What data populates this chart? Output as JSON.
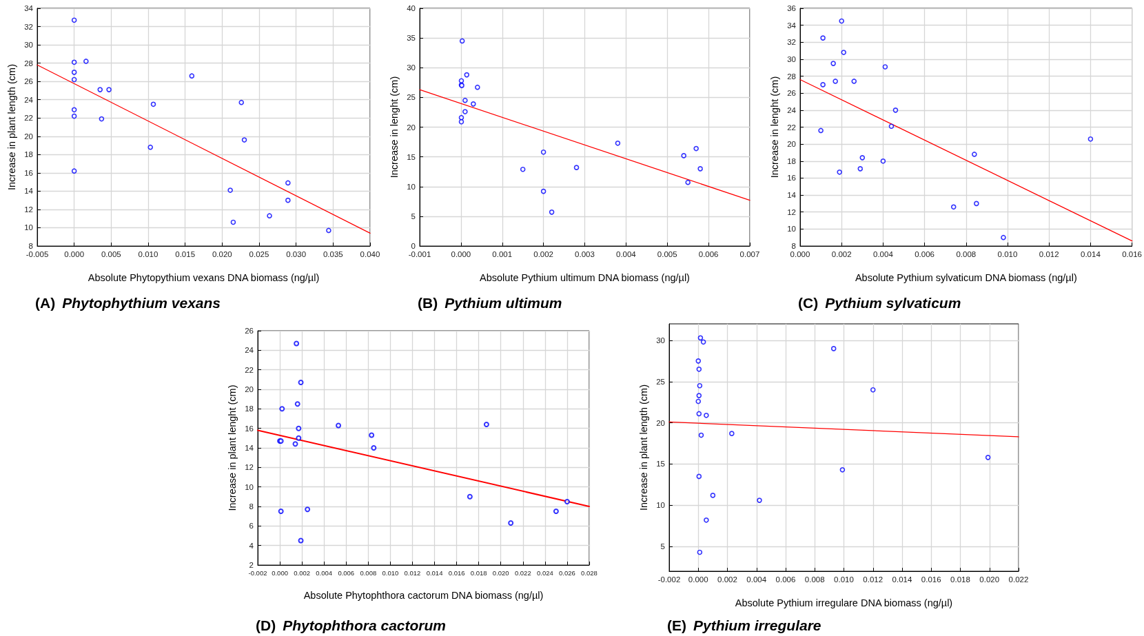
{
  "chart_data": [
    {
      "type": "scatter",
      "title": "(A) Phytophythium vexans",
      "xlabel": "Absolute Phytopythium vexans DNA biomass (ng/µl)",
      "ylabel": "Increase in plant length (cm)",
      "xlim": [
        -0.005,
        0.04
      ],
      "xticks": [
        {
          "value": -0.005,
          "label": "-0.005"
        },
        {
          "value": 0,
          "label": "0.000"
        },
        {
          "value": 0.005,
          "label": "0.005"
        },
        {
          "value": 0.01,
          "label": "0.010"
        },
        {
          "value": 0.015,
          "label": "0.015"
        },
        {
          "value": 0.02,
          "label": "0.020"
        },
        {
          "value": 0.025,
          "label": "0.025"
        },
        {
          "value": 0.03,
          "label": "0.030"
        },
        {
          "value": 0.035,
          "label": "0.035"
        },
        {
          "value": 0.04,
          "label": "0.040"
        }
      ],
      "ylim": [
        8,
        34
      ],
      "yticks": [
        8,
        10,
        12,
        14,
        16,
        18,
        20,
        22,
        24,
        26,
        28,
        30,
        32,
        34
      ],
      "grid": true,
      "marker": "circle",
      "series": [
        {
          "type": "scatter",
          "color": "#0000ff",
          "x": [
            0,
            0,
            0.0016,
            0,
            0,
            0.0035,
            0.0047,
            0.0159,
            0.0107,
            0.0226,
            0,
            0,
            0.0037,
            0.023,
            0.0103,
            0,
            0.0289,
            0.0211,
            0.0289,
            0.0264,
            0.0215,
            0.0344
          ],
          "values": [
            32.7,
            28.1,
            28.2,
            27.0,
            26.2,
            25.1,
            25.1,
            26.6,
            23.5,
            23.7,
            22.9,
            22.2,
            21.9,
            19.6,
            18.8,
            16.2,
            14.9,
            14.1,
            13.0,
            11.3,
            10.6,
            9.7
          ]
        },
        {
          "type": "line",
          "color": "#ff0000",
          "marker": "none",
          "line_style": "solid",
          "x": [
            -0.005,
            0.04
          ],
          "values": [
            27.8,
            9.4
          ]
        }
      ]
    },
    {
      "type": "scatter",
      "title": "(B) Pythium ultimum",
      "xlabel": "Absolute Pythium ultimum DNA biomass (ng/µl)",
      "ylabel": "Increase in lenght (cm)",
      "xlim": [
        -0.001,
        0.007
      ],
      "xticks": [
        {
          "value": -0.001,
          "label": "-0.001"
        },
        {
          "value": 0,
          "label": "0.000"
        },
        {
          "value": 0.001,
          "label": "0.001"
        },
        {
          "value": 0.002,
          "label": "0.002"
        },
        {
          "value": 0.003,
          "label": "0.003"
        },
        {
          "value": 0.004,
          "label": "0.004"
        },
        {
          "value": 0.005,
          "label": "0.005"
        },
        {
          "value": 0.006,
          "label": "0.006"
        },
        {
          "value": 0.007,
          "label": "0.007"
        }
      ],
      "ylim": [
        0,
        40
      ],
      "yticks": [
        0,
        5,
        10,
        15,
        20,
        25,
        30,
        35,
        40
      ],
      "grid": true,
      "marker": "circle",
      "series": [
        {
          "type": "scatter",
          "color": "#0000ff",
          "x": [
            3e-05,
            0.00014,
            1e-05,
            1e-05,
            2e-05,
            0.0004,
            0.0001,
            0.0003,
            0.0001,
            1e-05,
            1e-05,
            0.0038,
            0.0057,
            0.002,
            0.0054,
            0.0028,
            0.0058,
            0.0015,
            0.0055,
            0.002,
            0.0022
          ],
          "values": [
            34.5,
            28.8,
            27.8,
            27.1,
            27.0,
            26.7,
            24.5,
            23.9,
            22.6,
            21.6,
            20.9,
            17.3,
            16.4,
            15.8,
            15.2,
            13.2,
            13.0,
            12.9,
            10.7,
            9.2,
            5.7
          ]
        },
        {
          "type": "line",
          "color": "#ff0000",
          "marker": "none",
          "line_style": "solid",
          "x": [
            -0.001,
            0.007
          ],
          "values": [
            26.3,
            7.7
          ]
        }
      ]
    },
    {
      "type": "scatter",
      "title": "(C) Pythium sylvaticum",
      "xlabel": "Absolute Pythium sylvaticum DNA biomass (ng/µl)",
      "ylabel": "Increase in lenght (cm)",
      "xlim": [
        0,
        0.016
      ],
      "xticks": [
        {
          "value": 0,
          "label": "0.000"
        },
        {
          "value": 0.002,
          "label": "0.002"
        },
        {
          "value": 0.004,
          "label": "0.004"
        },
        {
          "value": 0.006,
          "label": "0.006"
        },
        {
          "value": 0.008,
          "label": "0.008"
        },
        {
          "value": 0.01,
          "label": "0.010"
        },
        {
          "value": 0.012,
          "label": "0.012"
        },
        {
          "value": 0.014,
          "label": "0.014"
        },
        {
          "value": 0.016,
          "label": "0.016"
        }
      ],
      "ylim": [
        8,
        36
      ],
      "yticks": [
        8,
        10,
        12,
        14,
        16,
        18,
        20,
        22,
        24,
        26,
        28,
        30,
        32,
        34,
        36
      ],
      "grid": true,
      "marker": "circle",
      "series": [
        {
          "type": "scatter",
          "color": "#0000ff",
          "x": [
            0.002,
            0.0011,
            0.0021,
            0.0016,
            0.0041,
            0.0017,
            0.0026,
            0.0011,
            0.0046,
            0.0044,
            0.001,
            0.014,
            0.0084,
            0.003,
            0.004,
            0.0029,
            0.0019,
            0.0085,
            0.0074,
            0.0098
          ],
          "values": [
            34.5,
            32.5,
            30.8,
            29.5,
            29.1,
            27.4,
            27.4,
            27.0,
            24.0,
            22.1,
            21.6,
            20.6,
            18.8,
            18.4,
            18.0,
            17.1,
            16.7,
            13.0,
            12.6,
            9.0
          ]
        },
        {
          "type": "line",
          "color": "#ff0000",
          "marker": "none",
          "line_style": "solid",
          "x": [
            0,
            0.016
          ],
          "values": [
            27.6,
            8.6
          ]
        }
      ]
    },
    {
      "type": "scatter",
      "title": "(D) Phytophthora cactorum",
      "xlabel": "Absolute Phytophthora cactorum DNA biomass (ng/µl)",
      "ylabel": "Increase in plant lenght (cm)",
      "xlim": [
        -0.002,
        0.028
      ],
      "xticks": [
        {
          "value": -0.002,
          "label": "-0.002"
        },
        {
          "value": 0,
          "label": "0.000"
        },
        {
          "value": 0.002,
          "label": "0.002"
        },
        {
          "value": 0.004,
          "label": "0.004"
        },
        {
          "value": 0.006,
          "label": "0.006"
        },
        {
          "value": 0.008,
          "label": "0.008"
        },
        {
          "value": 0.01,
          "label": "0.010"
        },
        {
          "value": 0.012,
          "label": "0.012"
        },
        {
          "value": 0.014,
          "label": "0.014"
        },
        {
          "value": 0.016,
          "label": "0.016"
        },
        {
          "value": 0.018,
          "label": "0.018"
        },
        {
          "value": 0.02,
          "label": "0.020"
        },
        {
          "value": 0.022,
          "label": "0.022"
        },
        {
          "value": 0.024,
          "label": "0.024"
        },
        {
          "value": 0.026,
          "label": "0.026"
        },
        {
          "value": 0.028,
          "label": "0.028"
        }
      ],
      "ylim": [
        2,
        26
      ],
      "yticks": [
        2,
        4,
        6,
        8,
        10,
        12,
        14,
        16,
        18,
        20,
        22,
        24,
        26
      ],
      "grid": true,
      "marker": "circle",
      "series": [
        {
          "type": "scatter",
          "color": "#0000ff",
          "x": [
            0.0015,
            0.0019,
            0.0016,
            0.0002,
            0.0053,
            0.0187,
            0.0017,
            0.0083,
            0.0017,
            0,
            0.0001,
            0.0014,
            0.0085,
            0.0172,
            0.026,
            0.0001,
            0.0025,
            0.025,
            0.0209,
            0.0019
          ],
          "values": [
            24.7,
            20.7,
            18.5,
            18.0,
            16.3,
            16.4,
            16.0,
            15.3,
            15.0,
            14.7,
            14.7,
            14.4,
            14.0,
            9.0,
            8.5,
            7.5,
            7.7,
            7.5,
            6.3,
            4.5
          ]
        },
        {
          "type": "line",
          "color": "#ff0000",
          "marker": "none",
          "line_style": "solid",
          "x": [
            -0.002,
            0.028
          ],
          "values": [
            15.8,
            8.0
          ]
        }
      ]
    },
    {
      "type": "scatter",
      "title": "(E) Pythium irregulare",
      "xlabel": "Absolute Pythium irregulare DNA biomass (ng/µl)",
      "ylabel": "Increase in plant length (cm)",
      "xlim": [
        -0.002,
        0.022
      ],
      "xticks": [
        {
          "value": -0.002,
          "label": "-0.002"
        },
        {
          "value": 0,
          "label": "0.000"
        },
        {
          "value": 0.002,
          "label": "0.002"
        },
        {
          "value": 0.004,
          "label": "0.004"
        },
        {
          "value": 0.006,
          "label": "0.006"
        },
        {
          "value": 0.008,
          "label": "0.008"
        },
        {
          "value": 0.01,
          "label": "0.010"
        },
        {
          "value": 0.012,
          "label": "0.012"
        },
        {
          "value": 0.014,
          "label": "0.014"
        },
        {
          "value": 0.016,
          "label": "0.016"
        },
        {
          "value": 0.018,
          "label": "0.018"
        },
        {
          "value": 0.02,
          "label": "0.020"
        },
        {
          "value": 0.022,
          "label": "0.022"
        }
      ],
      "ylim": [
        2,
        32
      ],
      "yticks": [
        5,
        10,
        15,
        20,
        25,
        30
      ],
      "grid": true,
      "marker": "circle",
      "series": [
        {
          "type": "scatter",
          "color": "#0000ff",
          "x": [
            0.00015,
            0.00035,
            0.0093,
            0,
            5e-05,
            0.0001,
            0.012,
            5e-05,
            0,
            5e-05,
            0.00055,
            0.0023,
            0.0002,
            0.0199,
            0.0099,
            5e-05,
            0.001,
            0.0042,
            0.00055,
            0.0001
          ],
          "values": [
            30.3,
            29.8,
            29.0,
            27.5,
            26.5,
            24.5,
            24.0,
            23.3,
            22.6,
            21.1,
            20.9,
            18.7,
            18.5,
            15.8,
            14.3,
            13.5,
            11.2,
            10.6,
            8.2,
            4.3
          ]
        },
        {
          "type": "line",
          "color": "#ff0000",
          "marker": "none",
          "line_style": "solid",
          "x": [
            -0.002,
            0.022
          ],
          "values": [
            20.1,
            18.3
          ]
        }
      ]
    }
  ]
}
